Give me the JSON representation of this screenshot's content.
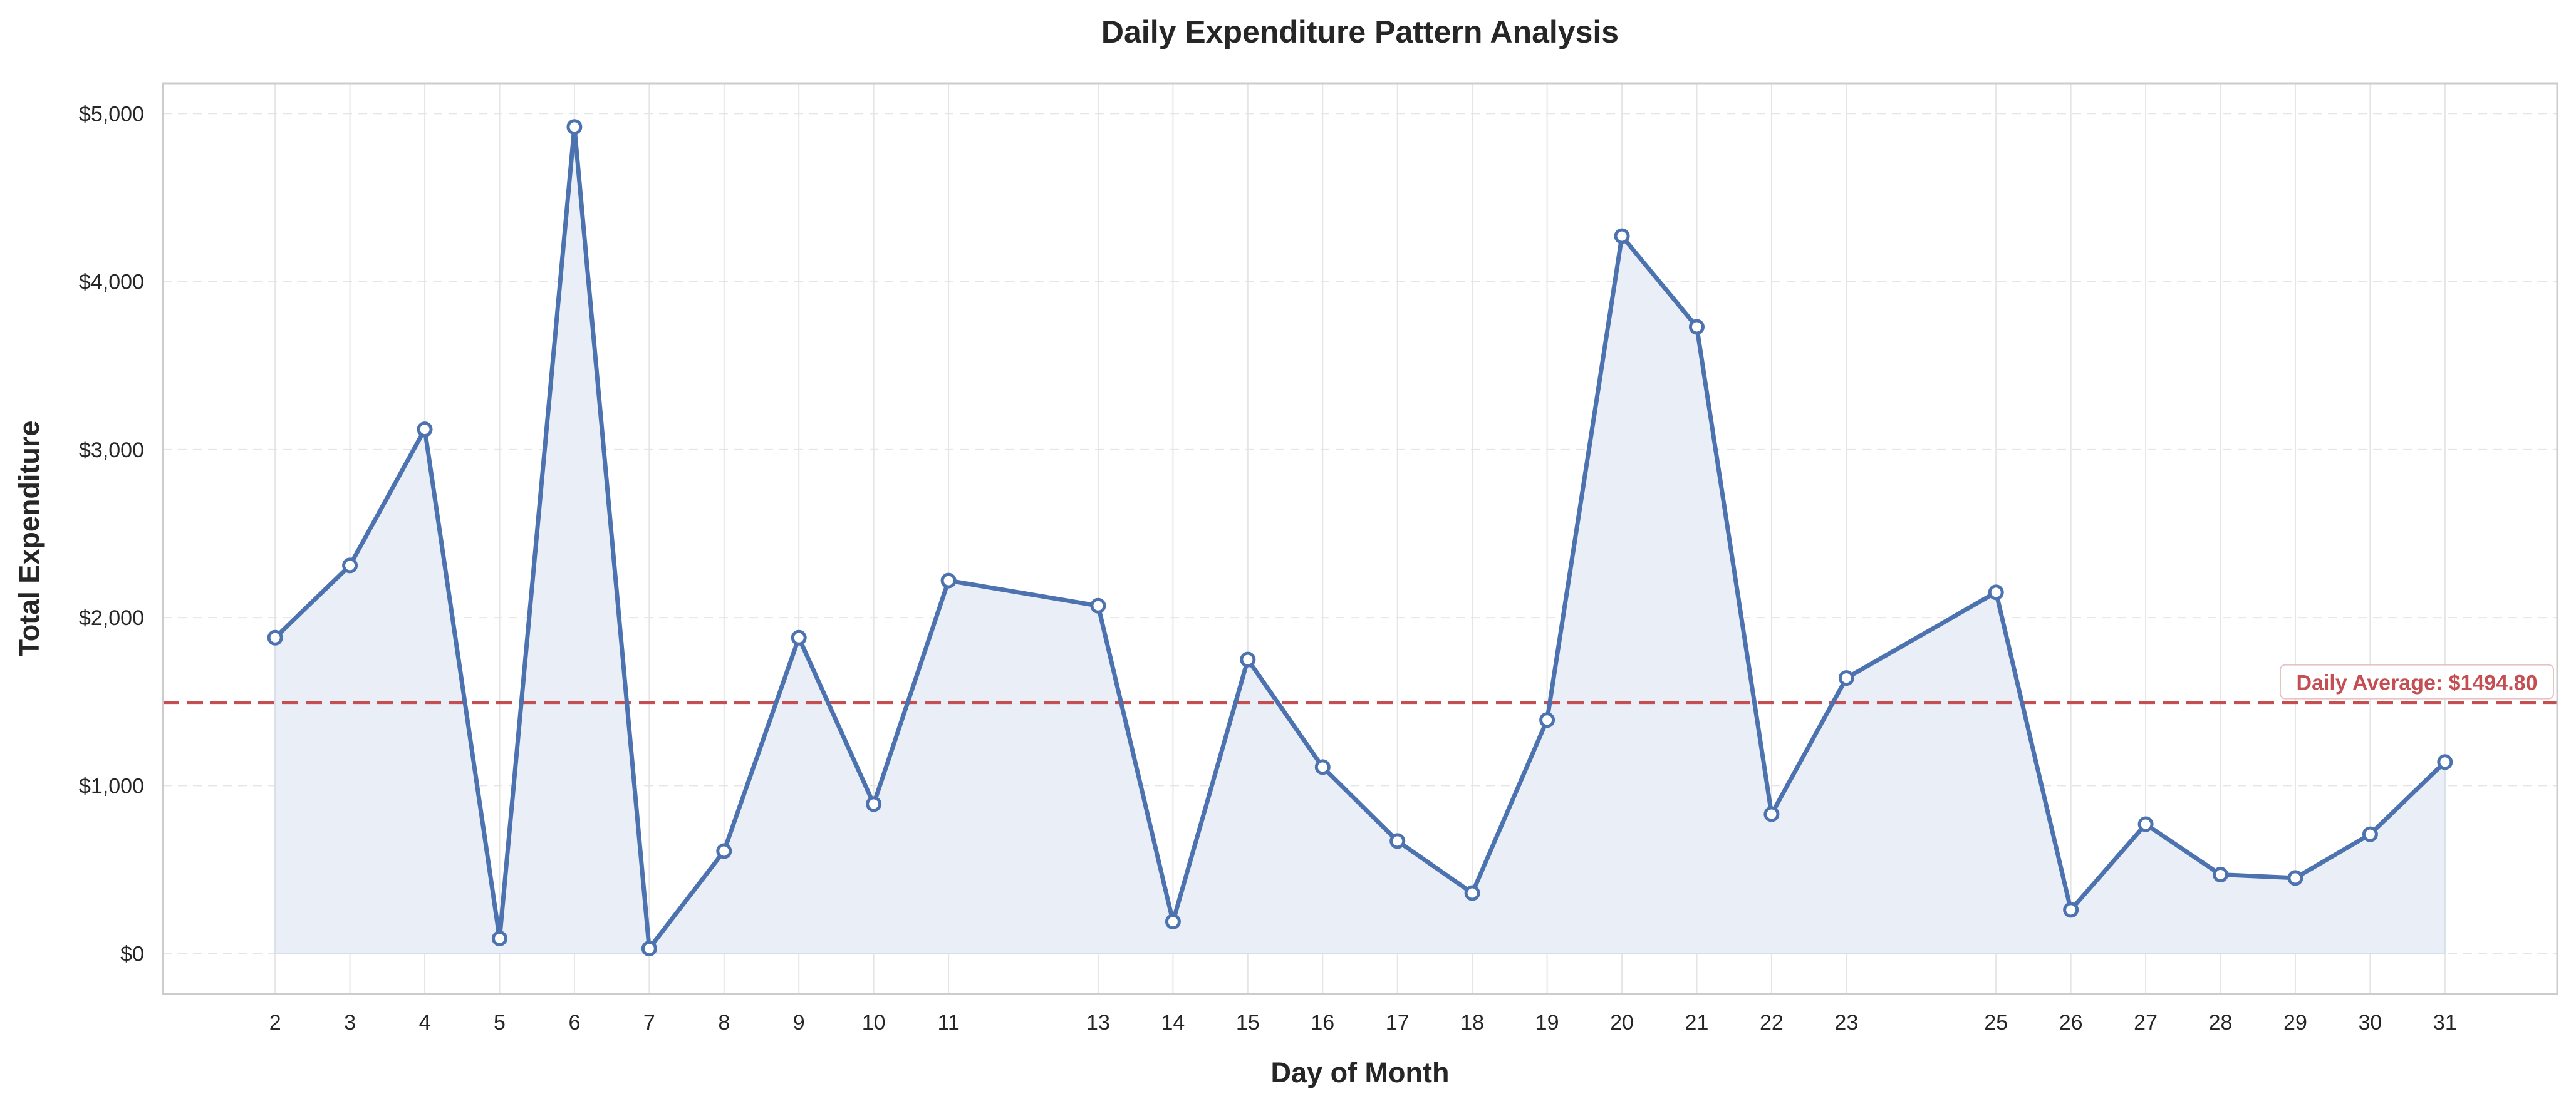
{
  "chart_data": {
    "type": "line",
    "title": "Daily Expenditure Pattern Analysis",
    "xlabel": "Day of Month",
    "ylabel": "Total Expenditure",
    "x": [
      2,
      3,
      4,
      5,
      6,
      7,
      8,
      9,
      10,
      11,
      13,
      14,
      15,
      16,
      17,
      18,
      19,
      20,
      21,
      22,
      23,
      25,
      26,
      27,
      28,
      29,
      30,
      31
    ],
    "series": [
      {
        "name": "",
        "values": [
          1880,
          2310,
          3120,
          90,
          4920,
          30,
          610,
          1880,
          890,
          2220,
          2070,
          190,
          1750,
          1110,
          670,
          360,
          1390,
          4270,
          3730,
          830,
          1640,
          2150,
          260,
          770,
          470,
          450,
          710,
          1140
        ]
      }
    ],
    "xticks": [
      2,
      3,
      4,
      5,
      6,
      7,
      8,
      9,
      10,
      11,
      13,
      14,
      15,
      16,
      17,
      18,
      19,
      20,
      21,
      22,
      23,
      25,
      26,
      27,
      28,
      29,
      30,
      31
    ],
    "yticks": [
      0,
      1000,
      2000,
      3000,
      4000,
      5000
    ],
    "ytick_labels": [
      "$0",
      "$1,000",
      "$2,000",
      "$3,000",
      "$4,000",
      "$5,000"
    ],
    "xlim": [
      0.5,
      32.5
    ],
    "ylim": [
      -240,
      5180
    ],
    "grid": true,
    "reference_line": {
      "value": 1494.8,
      "label": "Daily Average: $1494.80",
      "style": "dashed"
    },
    "colors": {
      "line": "#4c72b0",
      "fill": "#eaeef6",
      "average": "#c44e52",
      "grid": "#e5e5e5",
      "frame": "#cccccc",
      "text": "#262626"
    }
  }
}
